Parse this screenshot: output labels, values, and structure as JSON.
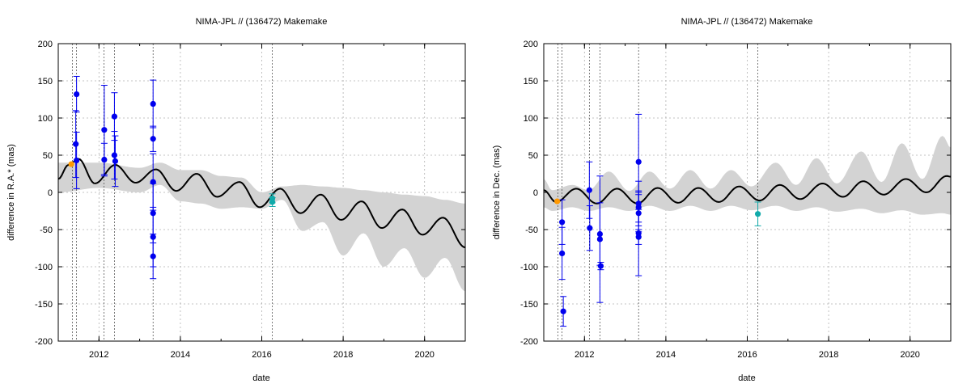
{
  "chart_data": [
    {
      "type": "line",
      "title": "NIMA-JPL // (136472) Makemake",
      "xlabel": "date",
      "ylabel": "difference in R.A.* (mas)",
      "xlim": [
        2011.0,
        2021.0
      ],
      "ylim": [
        -200,
        200
      ],
      "x_ticks": [
        2012,
        2014,
        2016,
        2018,
        2020
      ],
      "y_ticks": [
        -200,
        -150,
        -100,
        -50,
        0,
        50,
        100,
        150,
        200
      ],
      "grid": true,
      "curve": {
        "name": "",
        "color": "#000000",
        "samples": [
          {
            "x": 2011.0,
            "y": 18
          },
          {
            "x": 2011.25,
            "y": 37
          },
          {
            "x": 2011.5,
            "y": 45
          },
          {
            "x": 2011.9,
            "y": 12
          },
          {
            "x": 2012.4,
            "y": 37
          },
          {
            "x": 2012.9,
            "y": 13
          },
          {
            "x": 2013.4,
            "y": 31
          },
          {
            "x": 2013.9,
            "y": 2
          },
          {
            "x": 2014.4,
            "y": 25
          },
          {
            "x": 2014.9,
            "y": -6
          },
          {
            "x": 2015.45,
            "y": 14
          },
          {
            "x": 2015.95,
            "y": -20
          },
          {
            "x": 2016.45,
            "y": 5
          },
          {
            "x": 2016.95,
            "y": -28
          },
          {
            "x": 2017.45,
            "y": -3
          },
          {
            "x": 2017.95,
            "y": -37
          },
          {
            "x": 2018.45,
            "y": -12
          },
          {
            "x": 2018.95,
            "y": -48
          },
          {
            "x": 2019.45,
            "y": -23
          },
          {
            "x": 2019.95,
            "y": -57
          },
          {
            "x": 2020.45,
            "y": -34
          },
          {
            "x": 2021.0,
            "y": -74
          }
        ]
      },
      "band": {
        "color": "#d3d3d3",
        "samples": [
          {
            "x": 2011.0,
            "upper": 40,
            "lower": 0
          },
          {
            "x": 2012.0,
            "upper": 40,
            "lower": 6
          },
          {
            "x": 2013.0,
            "upper": 33,
            "lower": 0
          },
          {
            "x": 2013.5,
            "upper": 40,
            "lower": 10
          },
          {
            "x": 2014.0,
            "upper": 30,
            "lower": -12
          },
          {
            "x": 2014.5,
            "upper": 30,
            "lower": -15
          },
          {
            "x": 2015.0,
            "upper": 22,
            "lower": -22
          },
          {
            "x": 2015.5,
            "upper": 20,
            "lower": -20
          },
          {
            "x": 2016.0,
            "upper": 0,
            "lower": -22
          },
          {
            "x": 2016.5,
            "upper": 8,
            "lower": -10
          },
          {
            "x": 2017.0,
            "upper": 10,
            "lower": -52
          },
          {
            "x": 2017.5,
            "upper": 8,
            "lower": -40
          },
          {
            "x": 2018.0,
            "upper": 6,
            "lower": -85
          },
          {
            "x": 2018.5,
            "upper": 3,
            "lower": -55
          },
          {
            "x": 2019.0,
            "upper": 0,
            "lower": -100
          },
          {
            "x": 2019.5,
            "upper": -3,
            "lower": -75
          },
          {
            "x": 2020.0,
            "upper": -5,
            "lower": -115
          },
          {
            "x": 2020.5,
            "upper": -10,
            "lower": -88
          },
          {
            "x": 2021.0,
            "upper": -15,
            "lower": -133
          }
        ]
      },
      "vlines": [
        2011.35,
        2011.45,
        2012.12,
        2012.38,
        2013.33,
        2016.26
      ],
      "series": [
        {
          "color": "#0000ee",
          "points": [
            {
              "x": 2011.45,
              "y": 132,
              "err": 24
            },
            {
              "x": 2011.43,
              "y": 65,
              "err": 45
            },
            {
              "x": 2011.45,
              "y": 43,
              "err": 38
            },
            {
              "x": 2012.13,
              "y": 84,
              "err": 60
            },
            {
              "x": 2012.13,
              "y": 44,
              "err": 22
            },
            {
              "x": 2012.38,
              "y": 102,
              "err": 32
            },
            {
              "x": 2012.38,
              "y": 50,
              "err": 32
            },
            {
              "x": 2012.4,
              "y": 42,
              "err": 34
            },
            {
              "x": 2013.33,
              "y": 119,
              "err": 32
            },
            {
              "x": 2013.33,
              "y": 72,
              "err": 17
            },
            {
              "x": 2013.33,
              "y": 14,
              "err": 38
            },
            {
              "x": 2013.33,
              "y": -28,
              "err": 40
            },
            {
              "x": 2013.33,
              "y": -60,
              "err": 40
            },
            {
              "x": 2013.33,
              "y": -86,
              "err": 30
            }
          ]
        },
        {
          "color": "#ff9900",
          "points": [
            {
              "x": 2011.32,
              "y": 38,
              "err": 0
            }
          ]
        },
        {
          "color": "#11aaaa",
          "points": [
            {
              "x": 2016.26,
              "y": -8,
              "err": 6
            },
            {
              "x": 2016.26,
              "y": -13,
              "err": 6
            }
          ]
        }
      ]
    },
    {
      "type": "line",
      "title": "NIMA-JPL // (136472) Makemake",
      "xlabel": "date",
      "ylabel": "difference in Dec. (mas)",
      "xlim": [
        2011.0,
        2021.0
      ],
      "ylim": [
        -200,
        200
      ],
      "x_ticks": [
        2012,
        2014,
        2016,
        2018,
        2020
      ],
      "y_ticks": [
        -200,
        -150,
        -100,
        -50,
        0,
        50,
        100,
        150,
        200
      ],
      "grid": true,
      "curve": {
        "name": "",
        "color": "#000000",
        "samples": [
          {
            "x": 2011.0,
            "y": 3
          },
          {
            "x": 2011.3,
            "y": -13
          },
          {
            "x": 2011.8,
            "y": 5
          },
          {
            "x": 2012.3,
            "y": -15
          },
          {
            "x": 2012.8,
            "y": 5
          },
          {
            "x": 2013.3,
            "y": -15
          },
          {
            "x": 2013.8,
            "y": 6
          },
          {
            "x": 2014.3,
            "y": -14
          },
          {
            "x": 2014.8,
            "y": 6
          },
          {
            "x": 2015.3,
            "y": -13
          },
          {
            "x": 2015.8,
            "y": 8
          },
          {
            "x": 2016.3,
            "y": -11
          },
          {
            "x": 2016.8,
            "y": 10
          },
          {
            "x": 2017.3,
            "y": -9
          },
          {
            "x": 2017.85,
            "y": 12
          },
          {
            "x": 2018.35,
            "y": -6
          },
          {
            "x": 2018.85,
            "y": 15
          },
          {
            "x": 2019.35,
            "y": -3
          },
          {
            "x": 2019.9,
            "y": 18
          },
          {
            "x": 2020.4,
            "y": 0
          },
          {
            "x": 2020.9,
            "y": 22
          },
          {
            "x": 2021.0,
            "y": 21
          }
        ]
      },
      "band": {
        "color": "#d3d3d3",
        "samples": [
          {
            "x": 2011.0,
            "upper": 18,
            "lower": -20
          },
          {
            "x": 2011.2,
            "upper": 3,
            "lower": -25
          },
          {
            "x": 2011.7,
            "upper": 10,
            "lower": -20
          },
          {
            "x": 2012.1,
            "upper": 3,
            "lower": -25
          },
          {
            "x": 2012.6,
            "upper": 28,
            "lower": -20
          },
          {
            "x": 2013.1,
            "upper": 2,
            "lower": -25
          },
          {
            "x": 2013.6,
            "upper": 28,
            "lower": -18
          },
          {
            "x": 2014.1,
            "upper": 5,
            "lower": -25
          },
          {
            "x": 2014.6,
            "upper": 30,
            "lower": -18
          },
          {
            "x": 2015.1,
            "upper": 5,
            "lower": -25
          },
          {
            "x": 2015.6,
            "upper": 30,
            "lower": -18
          },
          {
            "x": 2016.1,
            "upper": 8,
            "lower": -24
          },
          {
            "x": 2016.7,
            "upper": 40,
            "lower": -18
          },
          {
            "x": 2017.2,
            "upper": 10,
            "lower": -25
          },
          {
            "x": 2017.7,
            "upper": 46,
            "lower": -20
          },
          {
            "x": 2018.2,
            "upper": 12,
            "lower": -26
          },
          {
            "x": 2018.8,
            "upper": 55,
            "lower": -22
          },
          {
            "x": 2019.3,
            "upper": 14,
            "lower": -28
          },
          {
            "x": 2019.8,
            "upper": 66,
            "lower": -24
          },
          {
            "x": 2020.3,
            "upper": 18,
            "lower": -30
          },
          {
            "x": 2020.8,
            "upper": 76,
            "lower": -28
          },
          {
            "x": 2021.0,
            "upper": 60,
            "lower": -30
          }
        ]
      },
      "vlines": [
        2011.35,
        2011.45,
        2012.12,
        2012.38,
        2013.33,
        2016.26
      ],
      "series": [
        {
          "color": "#0000ee",
          "points": [
            {
              "x": 2011.45,
              "y": -40,
              "err": 30
            },
            {
              "x": 2011.45,
              "y": -82,
              "err": 35
            },
            {
              "x": 2011.48,
              "y": -160,
              "err": 20
            },
            {
              "x": 2012.12,
              "y": 3,
              "err": 38
            },
            {
              "x": 2012.13,
              "y": -48,
              "err": 30
            },
            {
              "x": 2012.38,
              "y": -56,
              "err": 42
            },
            {
              "x": 2012.38,
              "y": -63,
              "err": 85
            },
            {
              "x": 2012.4,
              "y": -99,
              "err": 5
            },
            {
              "x": 2013.33,
              "y": 41,
              "err": 64
            },
            {
              "x": 2013.33,
              "y": -15,
              "err": 30
            },
            {
              "x": 2013.33,
              "y": -20,
              "err": 20
            },
            {
              "x": 2013.33,
              "y": -28,
              "err": 25
            },
            {
              "x": 2013.33,
              "y": -55,
              "err": 57
            },
            {
              "x": 2013.33,
              "y": -60,
              "err": 10
            }
          ]
        },
        {
          "color": "#ff9900",
          "points": [
            {
              "x": 2011.33,
              "y": -12,
              "err": 0
            }
          ]
        },
        {
          "color": "#11aaaa",
          "points": [
            {
              "x": 2016.26,
              "y": -29,
              "err": 16
            }
          ]
        }
      ]
    }
  ]
}
